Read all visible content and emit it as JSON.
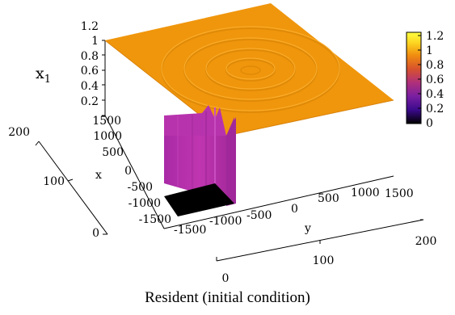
{
  "caption": "Resident (initial condition)",
  "chart_data": {
    "type": "surface3d",
    "title": "",
    "zlabel_main": "x",
    "zlabel_sub": "1",
    "xlabel": "x",
    "ylabel": "y",
    "z_ticks": [
      "0.2",
      "0.4",
      "0.6",
      "0.8",
      "1",
      "1.2"
    ],
    "x_ticks": [
      "-1500",
      "-1000",
      "-500",
      "0",
      "500",
      "1000",
      "1500"
    ],
    "y_ticks": [
      "-1500",
      "-1000",
      "-500",
      "0",
      "500",
      "1000",
      "1500"
    ],
    "grid_ticks_left": [
      "0",
      "100",
      "200"
    ],
    "grid_ticks_bottom": [
      "0",
      "100",
      "200"
    ],
    "colorbar_ticks": [
      "0",
      "0.2",
      "0.4",
      "0.6",
      "0.8",
      "1",
      "1.2"
    ],
    "colorbar_range": [
      0,
      1.2
    ],
    "colorbar_stops": [
      "#000000",
      "#3b0a8c",
      "#7a1fa2",
      "#b0307a",
      "#d8522c",
      "#f08e10",
      "#fcd320",
      "#ffff40"
    ],
    "plateau_value": 1.0,
    "well_value": 0.6,
    "pit_value": 0.0,
    "plateau_color": "#f0960c",
    "wall_color": "#b62ea6",
    "pit_color": "#000000"
  }
}
